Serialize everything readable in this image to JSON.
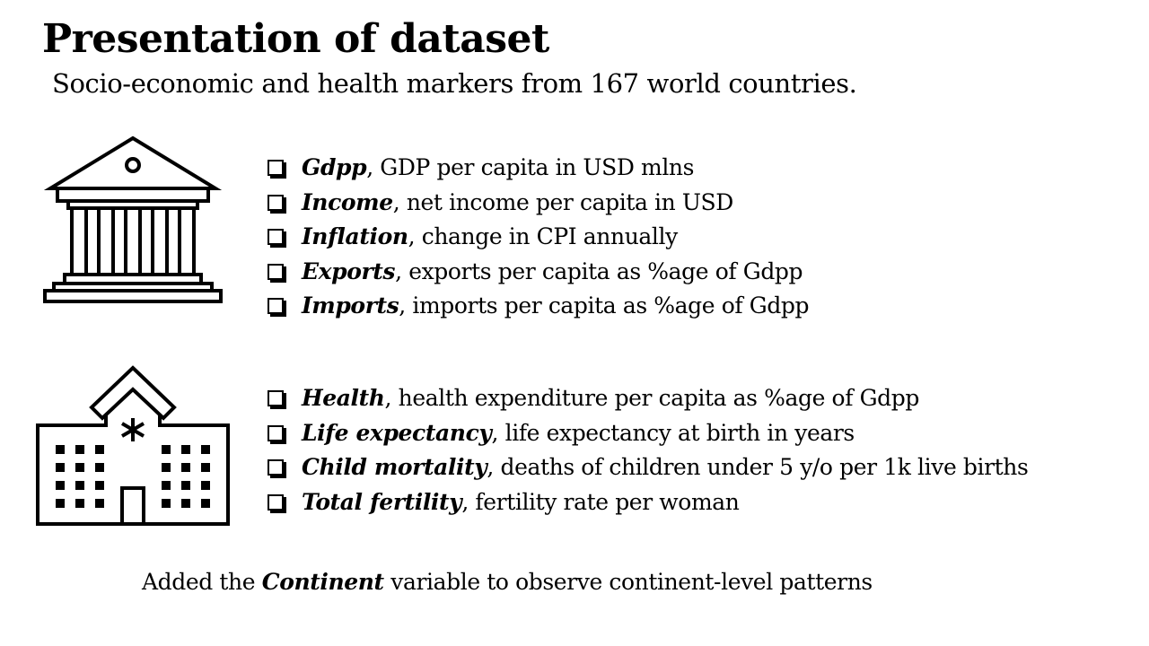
{
  "slide": {
    "title": "Presentation of dataset",
    "subtitle": "Socio-economic and health markers from 167 world countries."
  },
  "icons": {
    "economic": "bank-building-icon",
    "health": "hospital-icon"
  },
  "economic_variables": [
    {
      "term": "Gdpp",
      "desc": ", GDP per capita in USD mlns"
    },
    {
      "term": "Income",
      "desc": ", net income per capita in USD"
    },
    {
      "term": "Inflation",
      "desc": ", change in CPI annually"
    },
    {
      "term": "Exports",
      "desc": ", exports per capita as %age of Gdpp"
    },
    {
      "term": "Imports",
      "desc": ", imports per capita as %age of Gdpp"
    }
  ],
  "health_variables": [
    {
      "term": "Health",
      "desc": ", health expenditure per capita as %age of Gdpp"
    },
    {
      "term": "Life expectancy",
      "desc": ", life expectancy at birth in years"
    },
    {
      "term": "Child mortality",
      "desc": ", deaths of children under 5 y/o per 1k live births"
    },
    {
      "term": "Total fertility",
      "desc": ", fertility rate per woman"
    }
  ],
  "footnote": {
    "before": "Added the ",
    "term": "Continent",
    "after": " variable to observe continent-level patterns"
  }
}
